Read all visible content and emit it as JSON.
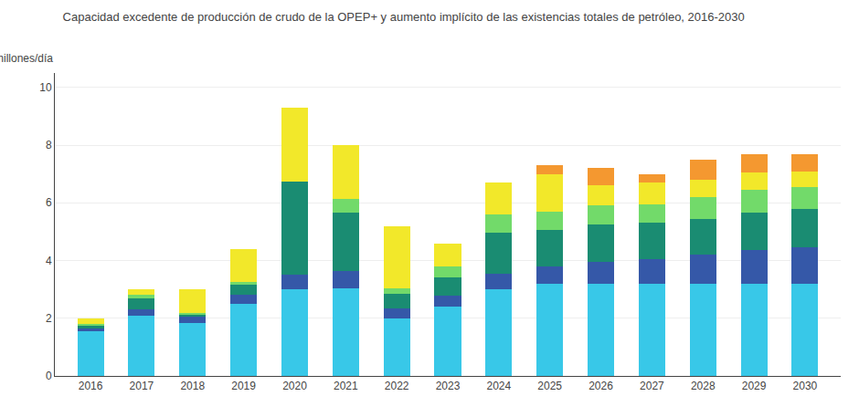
{
  "chart_data": {
    "type": "bar",
    "stacked": true,
    "title": "Capacidad excedente de producción de crudo de la OPEP+ y aumento implícito de las existencias totales de petróleo, 2016-2030",
    "ylabel": "millones/día",
    "categories": [
      "2016",
      "2017",
      "2018",
      "2019",
      "2020",
      "2021",
      "2022",
      "2023",
      "2024",
      "2025",
      "2026",
      "2027",
      "2028",
      "2029",
      "2030"
    ],
    "series": [
      {
        "color": "#38C8E8",
        "values": [
          1.55,
          2.1,
          1.85,
          2.5,
          3.0,
          3.05,
          2.0,
          2.4,
          3.0,
          3.2,
          3.2,
          3.2,
          3.2,
          3.2,
          3.2
        ]
      },
      {
        "color": "#3558A8",
        "values": [
          0.1,
          0.2,
          0.2,
          0.3,
          0.5,
          0.6,
          0.35,
          0.38,
          0.55,
          0.6,
          0.75,
          0.85,
          1.0,
          1.15,
          1.25
        ]
      },
      {
        "color": "#1A8C72",
        "values": [
          0.12,
          0.38,
          0.1,
          0.35,
          3.25,
          2.0,
          0.5,
          0.65,
          1.4,
          1.25,
          1.3,
          1.25,
          1.25,
          1.3,
          1.35
        ]
      },
      {
        "color": "#72DA6A",
        "values": [
          0.04,
          0.12,
          0.04,
          0.1,
          0.0,
          0.5,
          0.2,
          0.38,
          0.65,
          0.65,
          0.65,
          0.65,
          0.75,
          0.8,
          0.75
        ]
      },
      {
        "color": "#F2E82A",
        "values": [
          0.19,
          0.2,
          0.81,
          1.15,
          2.55,
          1.85,
          2.15,
          0.79,
          1.1,
          1.3,
          0.7,
          0.75,
          0.6,
          0.6,
          0.55
        ]
      },
      {
        "color": "#F49830",
        "values": [
          0.0,
          0.0,
          0.0,
          0.0,
          0.0,
          0.0,
          0.0,
          0.0,
          0.0,
          0.3,
          0.6,
          0.3,
          0.7,
          0.65,
          0.6
        ]
      }
    ],
    "ylim": [
      0,
      10.5
    ],
    "yticks": [
      0,
      2,
      4,
      6,
      8,
      10
    ],
    "grid": true
  }
}
